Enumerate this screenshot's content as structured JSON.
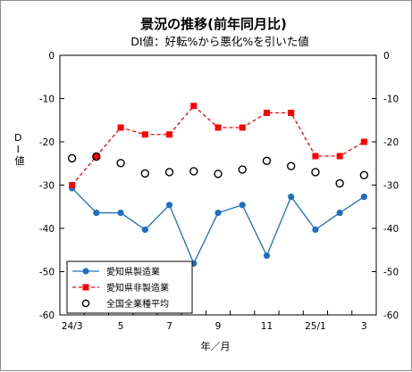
{
  "chart_data": {
    "type": "line",
    "title": "景況の推移(前年同月比)",
    "subtitle": "DI値：好転%から悪化%を引いた値",
    "ylabel": "DI値",
    "xlabel": "年／月",
    "ylim": [
      -60,
      0
    ],
    "yticks": [
      0,
      -10,
      -20,
      -30,
      -40,
      -50,
      -60
    ],
    "y_tick_labels": [
      "0",
      "-10",
      "-20",
      "-30",
      "-40",
      "-50",
      "-60"
    ],
    "categories": [
      "24/3",
      "4",
      "5",
      "6",
      "7",
      "8",
      "9",
      "10",
      "11",
      "12",
      "25/1",
      "2",
      "3"
    ],
    "x_tick_labels": [
      "24/3",
      "",
      "5",
      "",
      "7",
      "",
      "9",
      "",
      "11",
      "",
      "25/1",
      "",
      "3"
    ],
    "grid": false,
    "legend_position": "bottom-left",
    "series": [
      {
        "name": "愛知県製造業",
        "color": "#1e6fc0",
        "line_style": "solid",
        "marker": "circle",
        "values": [
          -30.7,
          -36.4,
          -36.4,
          -40.3,
          -34.6,
          -48.1,
          -36.4,
          -34.6,
          -46.3,
          -32.7,
          -40.3,
          -36.4,
          -32.7
        ]
      },
      {
        "name": "愛知県非製造業",
        "color": "#ff0000",
        "line_style": "dashed",
        "marker": "square",
        "values": [
          -30.0,
          -23.3,
          -16.7,
          -18.3,
          -18.3,
          -11.7,
          -16.7,
          -16.7,
          -13.3,
          -13.3,
          -23.3,
          -23.3,
          -20.0
        ]
      },
      {
        "name": "全国全業種平均",
        "color": "#000000",
        "line_style": "none",
        "marker": "open-circle",
        "values": [
          -23.8,
          -23.4,
          -24.9,
          -27.3,
          -27.0,
          -26.8,
          -27.4,
          -26.4,
          -24.4,
          -25.6,
          -27.0,
          -29.6,
          -27.7
        ]
      }
    ]
  }
}
